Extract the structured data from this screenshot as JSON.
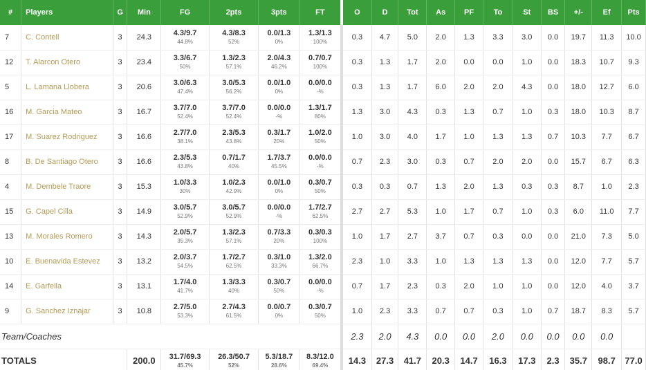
{
  "headers": {
    "num": "#",
    "players": "Players",
    "g": "G",
    "min": "Min",
    "fg": "FG",
    "pts2": "2pts",
    "pts3": "3pts",
    "ft": "FT",
    "o": "O",
    "d": "D",
    "tot": "Tot",
    "as": "As",
    "pf": "PF",
    "to": "To",
    "st": "St",
    "bs": "BS",
    "pm": "+/-",
    "ef": "Ef",
    "pts": "Pts"
  },
  "players": [
    {
      "num": "7",
      "name": "C. Contell",
      "g": "3",
      "min": "24.3",
      "fg": "4.3/9.7",
      "fg_pct": "44.8%",
      "p2": "4.3/8.3",
      "p2_pct": "52%",
      "p3": "0.0/1.3",
      "p3_pct": "0%",
      "ft": "1.3/1.3",
      "ft_pct": "100%",
      "o": "0.3",
      "d": "4.7",
      "tot": "5.0",
      "as": "2.0",
      "pf": "1.3",
      "to": "3.3",
      "st": "3.0",
      "bs": "0.0",
      "pm": "19.7",
      "ef": "11.3",
      "pts": "10.0"
    },
    {
      "num": "12",
      "name": "T. Alarcon Otero",
      "g": "3",
      "min": "23.4",
      "fg": "3.3/6.7",
      "fg_pct": "50%",
      "p2": "1.3/2.3",
      "p2_pct": "57.1%",
      "p3": "2.0/4.3",
      "p3_pct": "46.2%",
      "ft": "0.7/0.7",
      "ft_pct": "100%",
      "o": "0.3",
      "d": "1.3",
      "tot": "1.7",
      "as": "2.0",
      "pf": "0.0",
      "to": "0.0",
      "st": "1.0",
      "bs": "0.0",
      "pm": "18.3",
      "ef": "10.7",
      "pts": "9.3"
    },
    {
      "num": "5",
      "name": "L. Lamana Llobera",
      "g": "3",
      "min": "20.6",
      "fg": "3.0/6.3",
      "fg_pct": "47.4%",
      "p2": "3.0/5.3",
      "p2_pct": "56.2%",
      "p3": "0.0/1.0",
      "p3_pct": "0%",
      "ft": "0.0/0.0",
      "ft_pct": "-%",
      "o": "0.3",
      "d": "1.3",
      "tot": "1.7",
      "as": "6.0",
      "pf": "2.0",
      "to": "2.0",
      "st": "4.3",
      "bs": "0.0",
      "pm": "18.0",
      "ef": "12.7",
      "pts": "6.0"
    },
    {
      "num": "16",
      "name": "M. Garcia Mateo",
      "g": "3",
      "min": "16.7",
      "fg": "3.7/7.0",
      "fg_pct": "52.4%",
      "p2": "3.7/7.0",
      "p2_pct": "52.4%",
      "p3": "0.0/0.0",
      "p3_pct": "-%",
      "ft": "1.3/1.7",
      "ft_pct": "80%",
      "o": "1.3",
      "d": "3.0",
      "tot": "4.3",
      "as": "0.3",
      "pf": "1.3",
      "to": "0.7",
      "st": "1.0",
      "bs": "0.3",
      "pm": "18.0",
      "ef": "10.3",
      "pts": "8.7"
    },
    {
      "num": "17",
      "name": "M. Suarez Rodriguez",
      "g": "3",
      "min": "16.6",
      "fg": "2.7/7.0",
      "fg_pct": "38.1%",
      "p2": "2.3/5.3",
      "p2_pct": "43.8%",
      "p3": "0.3/1.7",
      "p3_pct": "20%",
      "ft": "1.0/2.0",
      "ft_pct": "50%",
      "o": "1.0",
      "d": "3.0",
      "tot": "4.0",
      "as": "1.7",
      "pf": "1.0",
      "to": "1.3",
      "st": "1.3",
      "bs": "0.7",
      "pm": "10.3",
      "ef": "7.7",
      "pts": "6.7"
    },
    {
      "num": "8",
      "name": "B. De Santiago Otero",
      "g": "3",
      "min": "16.6",
      "fg": "2.3/5.3",
      "fg_pct": "43.8%",
      "p2": "0.7/1.7",
      "p2_pct": "40%",
      "p3": "1.7/3.7",
      "p3_pct": "45.5%",
      "ft": "0.0/0.0",
      "ft_pct": "-%",
      "o": "0.7",
      "d": "2.3",
      "tot": "3.0",
      "as": "0.3",
      "pf": "0.7",
      "to": "2.0",
      "st": "2.0",
      "bs": "0.0",
      "pm": "15.7",
      "ef": "6.7",
      "pts": "6.3"
    },
    {
      "num": "4",
      "name": "M. Dembele Traore",
      "g": "3",
      "min": "15.3",
      "fg": "1.0/3.3",
      "fg_pct": "30%",
      "p2": "1.0/2.3",
      "p2_pct": "42.9%",
      "p3": "0.0/1.0",
      "p3_pct": "0%",
      "ft": "0.3/0.7",
      "ft_pct": "50%",
      "o": "0.3",
      "d": "0.3",
      "tot": "0.7",
      "as": "1.3",
      "pf": "2.0",
      "to": "1.3",
      "st": "0.3",
      "bs": "0.3",
      "pm": "8.7",
      "ef": "1.0",
      "pts": "2.3"
    },
    {
      "num": "15",
      "name": "G. Capel Cilla",
      "g": "3",
      "min": "14.9",
      "fg": "3.0/5.7",
      "fg_pct": "52.9%",
      "p2": "3.0/5.7",
      "p2_pct": "52.9%",
      "p3": "0.0/0.0",
      "p3_pct": "-%",
      "ft": "1.7/2.7",
      "ft_pct": "62.5%",
      "o": "2.7",
      "d": "2.7",
      "tot": "5.3",
      "as": "1.0",
      "pf": "1.7",
      "to": "0.7",
      "st": "1.0",
      "bs": "0.3",
      "pm": "6.0",
      "ef": "11.0",
      "pts": "7.7"
    },
    {
      "num": "13",
      "name": "M. Morales Romero",
      "g": "3",
      "min": "14.3",
      "fg": "2.0/5.7",
      "fg_pct": "35.3%",
      "p2": "1.3/2.3",
      "p2_pct": "57.1%",
      "p3": "0.7/3.3",
      "p3_pct": "20%",
      "ft": "0.3/0.3",
      "ft_pct": "100%",
      "o": "1.0",
      "d": "1.7",
      "tot": "2.7",
      "as": "3.7",
      "pf": "0.7",
      "to": "0.3",
      "st": "0.0",
      "bs": "0.0",
      "pm": "21.0",
      "ef": "7.3",
      "pts": "5.0"
    },
    {
      "num": "10",
      "name": "E. Buenavida Estevez",
      "g": "3",
      "min": "13.2",
      "fg": "2.0/3.7",
      "fg_pct": "54.5%",
      "p2": "1.7/2.7",
      "p2_pct": "62.5%",
      "p3": "0.3/1.0",
      "p3_pct": "33.3%",
      "ft": "1.3/2.0",
      "ft_pct": "66.7%",
      "o": "2.3",
      "d": "1.0",
      "tot": "3.3",
      "as": "1.0",
      "pf": "1.3",
      "to": "1.3",
      "st": "1.3",
      "bs": "0.0",
      "pm": "12.0",
      "ef": "7.7",
      "pts": "5.7"
    },
    {
      "num": "14",
      "name": "E. Garfella",
      "g": "3",
      "min": "13.1",
      "fg": "1.7/4.0",
      "fg_pct": "41.7%",
      "p2": "1.3/3.3",
      "p2_pct": "40%",
      "p3": "0.3/0.7",
      "p3_pct": "50%",
      "ft": "0.0/0.0",
      "ft_pct": "-%",
      "o": "0.7",
      "d": "1.7",
      "tot": "2.3",
      "as": "0.3",
      "pf": "2.0",
      "to": "1.0",
      "st": "1.0",
      "bs": "0.0",
      "pm": "12.0",
      "ef": "4.0",
      "pts": "3.7"
    },
    {
      "num": "9",
      "name": "G. Sanchez Iznajar",
      "g": "3",
      "min": "10.8",
      "fg": "2.7/5.0",
      "fg_pct": "53.3%",
      "p2": "2.7/4.3",
      "p2_pct": "61.5%",
      "p3": "0.0/0.7",
      "p3_pct": "0%",
      "ft": "0.3/0.7",
      "ft_pct": "50%",
      "o": "1.0",
      "d": "2.3",
      "tot": "3.3",
      "as": "0.7",
      "pf": "0.7",
      "to": "0.3",
      "st": "1.0",
      "bs": "0.7",
      "pm": "18.7",
      "ef": "8.3",
      "pts": "5.7"
    }
  ],
  "team": {
    "label": "Team/Coaches",
    "o": "2.3",
    "d": "2.0",
    "tot": "4.3",
    "as": "0.0",
    "pf": "0.0",
    "to": "2.0",
    "st": "0.0",
    "bs": "0.0",
    "pm": "0.0",
    "ef": "0.0",
    "pts": ""
  },
  "totals": {
    "label": "TOTALS",
    "min": "200.0",
    "fg": "31.7/69.3",
    "fg_pct": "45.7%",
    "p2": "26.3/50.7",
    "p2_pct": "52%",
    "p3": "5.3/18.7",
    "p3_pct": "28.6%",
    "ft": "8.3/12.0",
    "ft_pct": "69.4%",
    "o": "14.3",
    "d": "27.3",
    "tot": "41.7",
    "as": "20.3",
    "pf": "14.7",
    "to": "16.3",
    "st": "17.3",
    "bs": "2.3",
    "pm": "35.7",
    "ef": "98.7",
    "pts": "77.0"
  },
  "colors": {
    "header_bg": "#3a9e3a",
    "player_link": "#b39a55"
  }
}
